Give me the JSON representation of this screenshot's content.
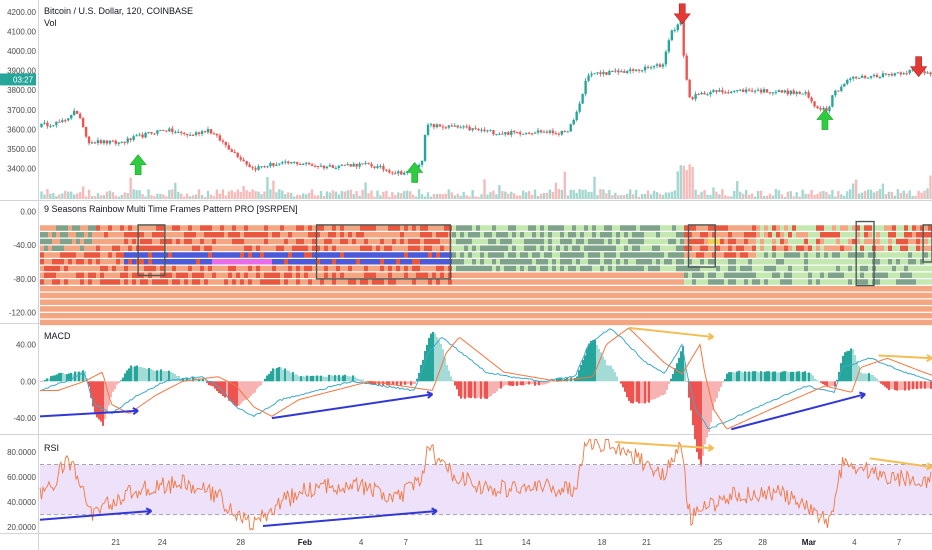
{
  "chart_data": [
    {
      "type": "candlestick",
      "title": "Bitcoin / U.S. Dollar, 120, COINBASE",
      "subtitle": "Vol",
      "ylim": [
        3250,
        4250
      ],
      "yticks": [
        "3400.00",
        "3500.00",
        "3600.00",
        "3700.00",
        "3800.00",
        "3900.00",
        "4000.00",
        "4100.00",
        "4200.00"
      ],
      "yticks_values": [
        3400,
        3500,
        3600,
        3700,
        3800,
        3900,
        4000,
        4100,
        4200
      ],
      "current_time_badge": "03:27",
      "current_time_value": 3855,
      "colors": {
        "up": "#26a69a",
        "down": "#ef5350"
      },
      "price_path": [
        {
          "t": 0,
          "v": 3620
        },
        {
          "t": 0.03,
          "v": 3640
        },
        {
          "t": 0.04,
          "v": 3700
        },
        {
          "t": 0.05,
          "v": 3620
        },
        {
          "t": 0.055,
          "v": 3540
        },
        {
          "t": 0.09,
          "v": 3530
        },
        {
          "t": 0.11,
          "v": 3560
        },
        {
          "t": 0.14,
          "v": 3600
        },
        {
          "t": 0.17,
          "v": 3570
        },
        {
          "t": 0.19,
          "v": 3600
        },
        {
          "t": 0.2,
          "v": 3560
        },
        {
          "t": 0.215,
          "v": 3500
        },
        {
          "t": 0.23,
          "v": 3440
        },
        {
          "t": 0.24,
          "v": 3400
        },
        {
          "t": 0.26,
          "v": 3420
        },
        {
          "t": 0.29,
          "v": 3430
        },
        {
          "t": 0.32,
          "v": 3410
        },
        {
          "t": 0.35,
          "v": 3420
        },
        {
          "t": 0.37,
          "v": 3420
        },
        {
          "t": 0.4,
          "v": 3380
        },
        {
          "t": 0.42,
          "v": 3380
        },
        {
          "t": 0.43,
          "v": 3450
        },
        {
          "t": 0.435,
          "v": 3620
        },
        {
          "t": 0.47,
          "v": 3610
        },
        {
          "t": 0.52,
          "v": 3580
        },
        {
          "t": 0.56,
          "v": 3590
        },
        {
          "t": 0.59,
          "v": 3580
        },
        {
          "t": 0.6,
          "v": 3640
        },
        {
          "t": 0.61,
          "v": 3780
        },
        {
          "t": 0.615,
          "v": 3880
        },
        {
          "t": 0.64,
          "v": 3890
        },
        {
          "t": 0.67,
          "v": 3900
        },
        {
          "t": 0.7,
          "v": 3930
        },
        {
          "t": 0.705,
          "v": 4040
        },
        {
          "t": 0.71,
          "v": 4100
        },
        {
          "t": 0.72,
          "v": 4150
        },
        {
          "t": 0.725,
          "v": 3900
        },
        {
          "t": 0.73,
          "v": 3760
        },
        {
          "t": 0.75,
          "v": 3790
        },
        {
          "t": 0.8,
          "v": 3800
        },
        {
          "t": 0.84,
          "v": 3790
        },
        {
          "t": 0.86,
          "v": 3780
        },
        {
          "t": 0.87,
          "v": 3720
        },
        {
          "t": 0.885,
          "v": 3700
        },
        {
          "t": 0.89,
          "v": 3780
        },
        {
          "t": 0.91,
          "v": 3860
        },
        {
          "t": 0.95,
          "v": 3880
        },
        {
          "t": 0.98,
          "v": 3900
        },
        {
          "t": 1.0,
          "v": 3890
        }
      ],
      "signals": [
        {
          "type": "buy",
          "t": 0.11,
          "value": 3410
        },
        {
          "type": "buy",
          "t": 0.42,
          "value": 3370
        },
        {
          "type": "buy",
          "t": 0.88,
          "value": 3640
        },
        {
          "type": "sell",
          "t": 0.72,
          "value": 4190
        },
        {
          "type": "sell",
          "t": 0.985,
          "value": 3920
        }
      ]
    },
    {
      "type": "heatmap",
      "title": "9 Seasons Rainbow Multi Time Frames Pattern PRO [9SRPEN]",
      "ylim": [
        -130,
        10
      ],
      "yticks": [
        "0.00",
        "-40.00",
        "-80.00",
        "-120.00"
      ],
      "yticks_values": [
        0,
        -40,
        -80,
        -120
      ],
      "row_levels": [
        -20,
        -28,
        -36,
        -44,
        -52,
        -60,
        -68,
        -76,
        -84,
        -92,
        -100,
        -108,
        -116,
        -124,
        -132
      ],
      "colors": {
        "salmon": "#f4a582",
        "red": "#e8573e",
        "lightgreen": "#c4e8b0",
        "darkgreen": "#7fa38a",
        "blue": "#4a5ad8",
        "magenta": "#e96ce8",
        "yellow": "#f6d04d"
      },
      "boxes": [
        {
          "t0": 0.11,
          "t1": 0.14,
          "v0": -16,
          "v1": -76
        },
        {
          "t0": 0.31,
          "t1": 0.46,
          "v0": -16,
          "v1": -80
        },
        {
          "t0": 0.727,
          "t1": 0.757,
          "v0": -16,
          "v1": -66
        },
        {
          "t0": 0.915,
          "t1": 0.935,
          "v0": -12,
          "v1": -88
        },
        {
          "t0": 0.99,
          "t1": 1.0,
          "v0": -16,
          "v1": -60
        }
      ]
    },
    {
      "type": "macd",
      "title": "MACD",
      "ylim": [
        -55,
        60
      ],
      "yticks": [
        "40.00",
        "0.00",
        "-40.00"
      ],
      "yticks_values": [
        40,
        0,
        -40
      ],
      "colors": {
        "macd": "#3fa8c9",
        "signal": "#f47640",
        "hist_up": "#26a69a",
        "hist_down": "#ef5350",
        "bull_div": "#3138d6",
        "bear_div": "#f4bd55"
      },
      "divergences": [
        {
          "kind": "bullish",
          "t0": 0.0,
          "v0": -38,
          "t1": 0.11,
          "v1": -32
        },
        {
          "kind": "bullish",
          "t0": 0.26,
          "v0": -40,
          "t1": 0.44,
          "v1": -14
        },
        {
          "kind": "bullish",
          "t0": 0.775,
          "v0": -52,
          "t1": 0.925,
          "v1": -14
        },
        {
          "kind": "bearish",
          "t0": 0.66,
          "v0": 58,
          "t1": 0.755,
          "v1": 48
        },
        {
          "kind": "bearish",
          "t0": 0.94,
          "v0": 28,
          "t1": 1.0,
          "v1": 25
        }
      ]
    },
    {
      "type": "line",
      "title": "RSI",
      "ylim": [
        17,
        92
      ],
      "yticks": [
        "80.0000",
        "60.0000",
        "40.0000",
        "20.0000"
      ],
      "yticks_values": [
        80,
        60,
        40,
        20
      ],
      "band": [
        30,
        70
      ],
      "colors": {
        "rsi": "#f47640",
        "band": "#e6d5f6",
        "bull_div": "#3138d6",
        "bear_div": "#f4bd55"
      },
      "divergences": [
        {
          "kind": "bullish",
          "t0": 0.0,
          "v0": 26,
          "t1": 0.125,
          "v1": 33
        },
        {
          "kind": "bullish",
          "t0": 0.25,
          "v0": 21,
          "t1": 0.445,
          "v1": 33
        },
        {
          "kind": "bearish",
          "t0": 0.645,
          "v0": 88,
          "t1": 0.755,
          "v1": 83
        },
        {
          "kind": "bearish",
          "t0": 0.93,
          "v0": 75,
          "t1": 1.0,
          "v1": 68
        }
      ]
    }
  ],
  "x_axis": {
    "labels": [
      "21",
      "24",
      "28",
      "Feb",
      "4",
      "7",
      "11",
      "14",
      "18",
      "21",
      "25",
      "28",
      "Mar",
      "4",
      "7"
    ],
    "bold_labels": [
      "Feb",
      "Mar"
    ],
    "positions": [
      0.085,
      0.137,
      0.225,
      0.297,
      0.36,
      0.41,
      0.492,
      0.545,
      0.63,
      0.68,
      0.76,
      0.81,
      0.862,
      0.913,
      0.963
    ]
  }
}
